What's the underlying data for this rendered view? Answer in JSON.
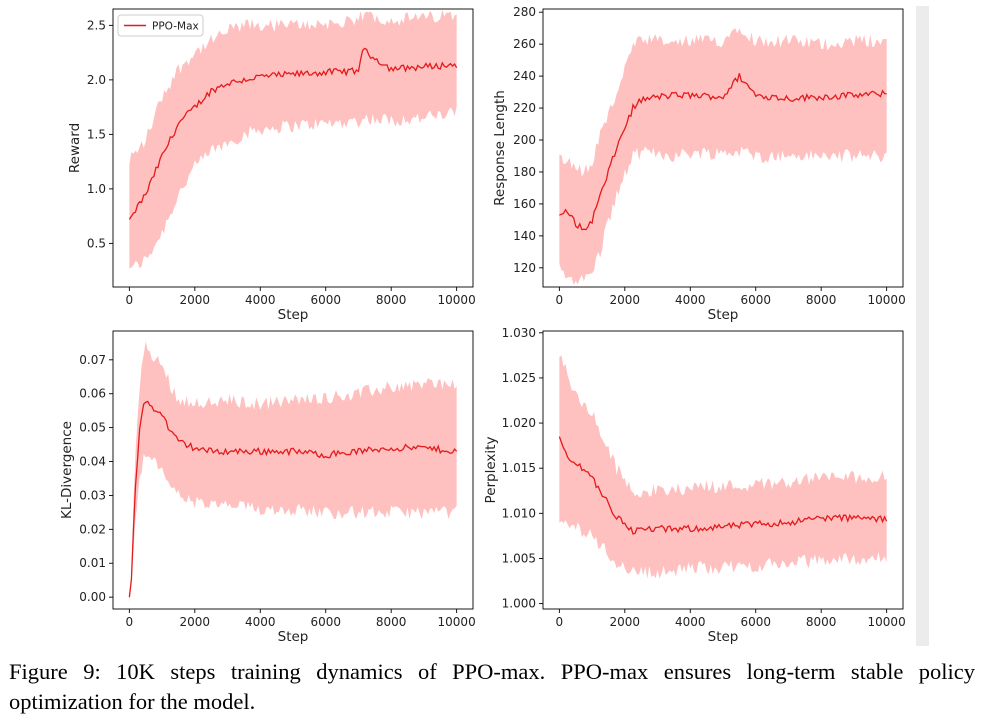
{
  "colors": {
    "line": "#e41a1c",
    "band": "#ffc0c0"
  },
  "legend": {
    "label": "PPO-Max"
  },
  "caption": "Figure 9: 10K steps training dynamics of PPO-max. PPO-max ensures long-term stable policy optimization for the model.",
  "chart_data": [
    {
      "type": "line",
      "xlabel": "Step",
      "ylabel": "Reward",
      "xlim": [
        -500,
        10500
      ],
      "ylim": [
        0.1,
        2.65
      ],
      "xticks": [
        0,
        2000,
        4000,
        6000,
        8000,
        10000
      ],
      "yticks": [
        0.5,
        1.0,
        1.5,
        2.0,
        2.5
      ],
      "ytick_labels": [
        "0.5",
        "1.0",
        "1.5",
        "2.0",
        "2.5"
      ],
      "legend": "top-left",
      "series": [
        {
          "name": "PPO-Max",
          "x": [
            0,
            500,
            1000,
            1500,
            2000,
            2500,
            3000,
            3500,
            4000,
            5000,
            6000,
            7000,
            7100,
            8000,
            9000,
            10000
          ],
          "y": [
            0.72,
            0.95,
            1.3,
            1.6,
            1.75,
            1.9,
            1.97,
            2.0,
            2.03,
            2.05,
            2.07,
            2.08,
            2.28,
            2.1,
            2.12,
            2.14
          ],
          "band_low": [
            0.25,
            0.35,
            0.6,
            0.95,
            1.2,
            1.35,
            1.42,
            1.5,
            1.55,
            1.58,
            1.6,
            1.62,
            1.65,
            1.63,
            1.65,
            1.7
          ],
          "band_high": [
            1.25,
            1.45,
            1.85,
            2.1,
            2.25,
            2.35,
            2.45,
            2.5,
            2.5,
            2.5,
            2.52,
            2.52,
            2.6,
            2.55,
            2.57,
            2.6
          ]
        }
      ]
    },
    {
      "type": "line",
      "xlabel": "Step",
      "ylabel": "Response Length",
      "xlim": [
        -500,
        10500
      ],
      "ylim": [
        108,
        282
      ],
      "xticks": [
        0,
        2000,
        4000,
        6000,
        8000,
        10000
      ],
      "yticks": [
        120,
        140,
        160,
        180,
        200,
        220,
        240,
        260,
        280
      ],
      "ytick_labels": [
        "120",
        "140",
        "160",
        "180",
        "200",
        "220",
        "240",
        "260",
        "280"
      ],
      "series": [
        {
          "name": "PPO-Max",
          "x": [
            0,
            250,
            500,
            750,
            1000,
            1250,
            1500,
            1750,
            2000,
            2250,
            2500,
            3000,
            3500,
            4000,
            5000,
            5500,
            6000,
            7000,
            8000,
            9000,
            10000
          ],
          "y": [
            153,
            155,
            148,
            143,
            150,
            165,
            180,
            195,
            208,
            220,
            225,
            227,
            228,
            228,
            227,
            240,
            228,
            226,
            227,
            228,
            229
          ],
          "band_low": [
            120,
            115,
            113,
            112,
            118,
            130,
            150,
            165,
            178,
            190,
            192,
            192,
            190,
            192,
            192,
            193,
            190,
            190,
            190,
            190,
            190
          ],
          "band_high": [
            188,
            190,
            183,
            180,
            185,
            205,
            215,
            230,
            245,
            258,
            262,
            262,
            260,
            262,
            262,
            272,
            262,
            262,
            260,
            262,
            262
          ]
        }
      ]
    },
    {
      "type": "line",
      "xlabel": "Step",
      "ylabel": "KL-Divergence",
      "xlim": [
        -500,
        10500
      ],
      "ylim": [
        -0.0035,
        0.0785
      ],
      "xticks": [
        0,
        2000,
        4000,
        6000,
        8000,
        10000
      ],
      "yticks": [
        0.0,
        0.01,
        0.02,
        0.03,
        0.04,
        0.05,
        0.06,
        0.07
      ],
      "ytick_labels": [
        "0.00",
        "0.01",
        "0.02",
        "0.03",
        "0.04",
        "0.05",
        "0.06",
        "0.07"
      ],
      "series": [
        {
          "name": "PPO-Max",
          "x": [
            0,
            50,
            100,
            200,
            300,
            400,
            500,
            700,
            900,
            1100,
            1300,
            1500,
            2000,
            2500,
            3000,
            4000,
            5000,
            6000,
            7000,
            8000,
            9000,
            10000
          ],
          "y": [
            0.0,
            0.002,
            0.015,
            0.035,
            0.048,
            0.055,
            0.058,
            0.056,
            0.055,
            0.052,
            0.048,
            0.046,
            0.044,
            0.043,
            0.043,
            0.043,
            0.043,
            0.042,
            0.043,
            0.044,
            0.044,
            0.043
          ],
          "band_low": [
            0.0,
            0.001,
            0.01,
            0.025,
            0.035,
            0.04,
            0.042,
            0.04,
            0.038,
            0.036,
            0.033,
            0.03,
            0.028,
            0.027,
            0.027,
            0.026,
            0.026,
            0.025,
            0.025,
            0.025,
            0.025,
            0.025
          ],
          "band_high": [
            0.0,
            0.003,
            0.02,
            0.045,
            0.062,
            0.07,
            0.074,
            0.07,
            0.07,
            0.066,
            0.062,
            0.058,
            0.058,
            0.057,
            0.058,
            0.057,
            0.058,
            0.059,
            0.06,
            0.062,
            0.063,
            0.063
          ]
        }
      ]
    },
    {
      "type": "line",
      "xlabel": "Step",
      "ylabel": "Perplexity",
      "xlim": [
        -500,
        10500
      ],
      "ylim": [
        0.9994,
        1.0302
      ],
      "xticks": [
        0,
        2000,
        4000,
        6000,
        8000,
        10000
      ],
      "yticks": [
        1.0,
        1.005,
        1.01,
        1.015,
        1.02,
        1.025,
        1.03
      ],
      "ytick_labels": [
        "1.000",
        "1.005",
        "1.010",
        "1.015",
        "1.020",
        "1.025",
        "1.030"
      ],
      "series": [
        {
          "name": "PPO-Max",
          "x": [
            0,
            250,
            500,
            750,
            1000,
            1250,
            1500,
            1750,
            2000,
            2250,
            2500,
            3000,
            3500,
            4000,
            5000,
            6000,
            7000,
            8000,
            9000,
            10000
          ],
          "y": [
            1.0185,
            1.016,
            1.0155,
            1.015,
            1.014,
            1.0125,
            1.011,
            1.0095,
            1.009,
            1.008,
            1.0082,
            1.0083,
            1.0082,
            1.0083,
            1.0085,
            1.0088,
            1.009,
            1.0095,
            1.0095,
            1.0093
          ],
          "band_low": [
            1.009,
            1.0085,
            1.0085,
            1.008,
            1.0075,
            1.0065,
            1.0055,
            1.0045,
            1.0042,
            1.0035,
            1.0035,
            1.0035,
            1.0035,
            1.004,
            1.004,
            1.0042,
            1.0045,
            1.0048,
            1.005,
            1.005
          ],
          "band_high": [
            1.028,
            1.025,
            1.023,
            1.022,
            1.021,
            1.019,
            1.017,
            1.015,
            1.0135,
            1.0125,
            1.0125,
            1.0125,
            1.0125,
            1.013,
            1.013,
            1.0132,
            1.0135,
            1.014,
            1.014,
            1.014
          ]
        }
      ]
    }
  ]
}
